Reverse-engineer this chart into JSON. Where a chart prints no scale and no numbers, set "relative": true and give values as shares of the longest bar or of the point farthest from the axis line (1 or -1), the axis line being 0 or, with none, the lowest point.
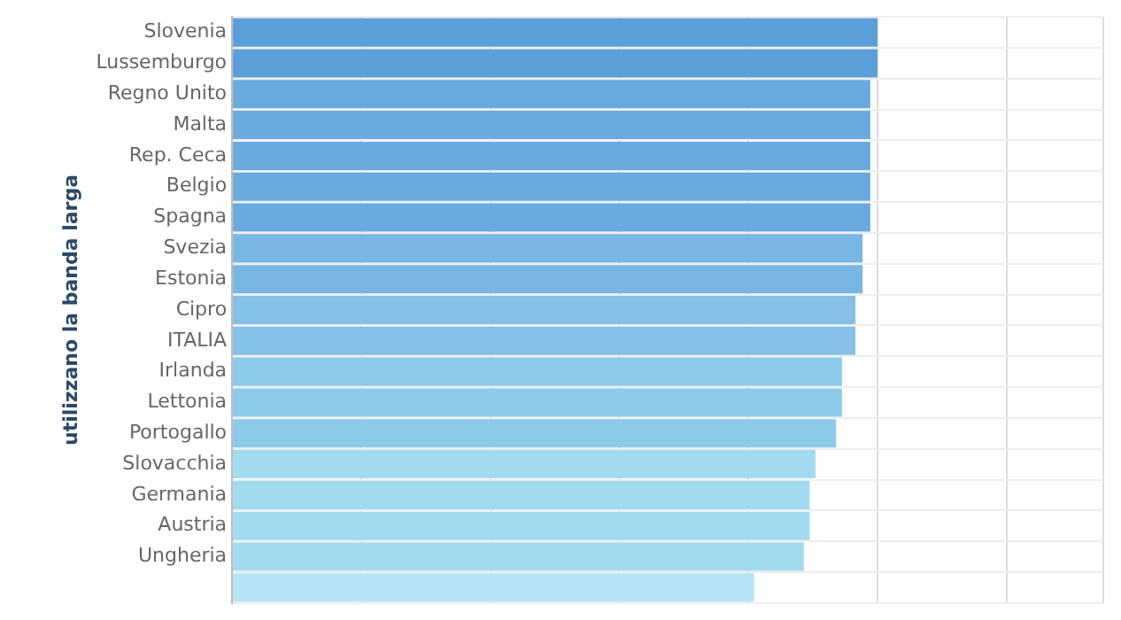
{
  "chart_data": {
    "type": "bar",
    "orientation": "horizontal",
    "relative": true,
    "grid": true,
    "ylabel": "utilizzano la banda larga",
    "categories": [
      "Slovenia",
      "Lussemburgo",
      "Regno Unito",
      "Malta",
      "Rep. Ceca",
      "Belgio",
      "Spagna",
      "Svezia",
      "Estonia",
      "Cipro",
      "ITALIA",
      "Irlanda",
      "Lettonia",
      "Portogallo",
      "Slovacchia",
      "Germania",
      "Austria",
      "Ungheria",
      null
    ],
    "values": [
      1,
      1,
      0.989,
      0.989,
      0.989,
      0.989,
      0.989,
      0.977,
      0.977,
      0.966,
      0.966,
      0.945,
      0.945,
      0.936,
      0.904,
      0.895,
      0.895,
      0.886,
      0.809
    ],
    "colors": [
      "#5b9fd9",
      "#5b9fd9",
      "#6aaadf",
      "#6aaadf",
      "#6aaadf",
      "#6aaadf",
      "#6aaadf",
      "#78b6e3",
      "#78b6e3",
      "#84c0e7",
      "#84c0e7",
      "#8ccaea",
      "#8ccaea",
      "#8ccaea",
      "#a2dbf0",
      "#a2dbf0",
      "#a2dbf0",
      "#a2dbf0",
      "#b5e4f4"
    ]
  }
}
